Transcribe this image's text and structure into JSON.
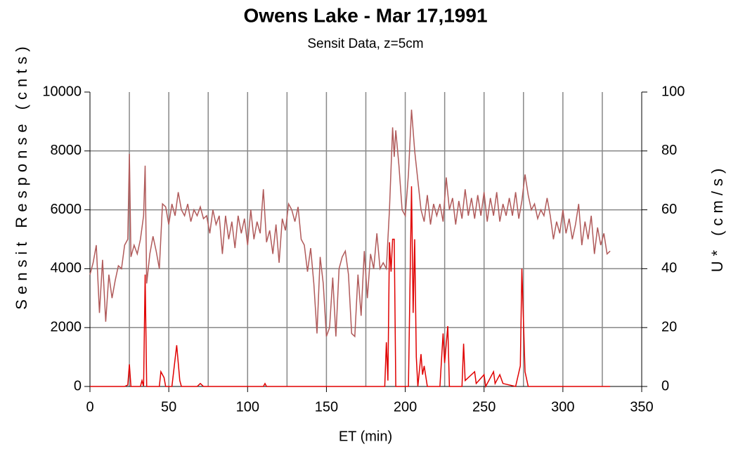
{
  "chart_data": {
    "type": "line",
    "title": "Owens Lake - Mar 17,1991",
    "subtitle": "Sensit Data, z=5cm",
    "x_label": "ET (min)",
    "y_label": "Sensit Response (cnts)",
    "y2_label": "U* (cm/s)",
    "xlim": [
      0,
      350
    ],
    "xticks": [
      0,
      50,
      100,
      150,
      200,
      250,
      300,
      350
    ],
    "x_minor_grid": [
      25,
      75,
      125,
      175,
      225,
      275,
      325
    ],
    "ylim": [
      0,
      10000
    ],
    "yticks": [
      0,
      2000,
      4000,
      6000,
      8000,
      10000
    ],
    "y2lim": [
      0,
      100
    ],
    "y2ticks": [
      0,
      20,
      40,
      60,
      80,
      100
    ],
    "grid": true,
    "series": [
      {
        "axis": "y2",
        "color": "#b05a5a",
        "x": [
          0,
          2,
          4,
          6,
          8,
          10,
          12,
          14,
          16,
          18,
          20,
          22,
          24,
          25,
          26,
          28,
          30,
          32,
          34,
          35,
          36,
          38,
          40,
          42,
          44,
          46,
          48,
          50,
          52,
          54,
          56,
          58,
          60,
          62,
          64,
          66,
          68,
          70,
          72,
          74,
          76,
          78,
          80,
          82,
          84,
          86,
          88,
          90,
          92,
          94,
          96,
          98,
          100,
          102,
          104,
          106,
          108,
          110,
          112,
          114,
          116,
          118,
          120,
          122,
          124,
          126,
          128,
          130,
          132,
          134,
          136,
          138,
          140,
          142,
          144,
          146,
          148,
          150,
          152,
          154,
          156,
          158,
          160,
          162,
          164,
          166,
          168,
          170,
          172,
          174,
          176,
          178,
          180,
          182,
          184,
          186,
          188,
          190,
          192,
          193,
          194,
          196,
          198,
          200,
          202,
          204,
          206,
          208,
          210,
          212,
          214,
          216,
          218,
          220,
          222,
          224,
          226,
          228,
          230,
          232,
          234,
          236,
          238,
          240,
          242,
          244,
          246,
          248,
          250,
          252,
          254,
          256,
          258,
          260,
          262,
          264,
          266,
          268,
          270,
          272,
          274,
          276,
          278,
          280,
          282,
          284,
          286,
          288,
          290,
          292,
          294,
          296,
          298,
          300,
          302,
          304,
          306,
          308,
          310,
          312,
          314,
          316,
          318,
          320,
          322,
          324,
          326,
          328,
          330
        ],
        "values": [
          38,
          42,
          48,
          25,
          43,
          22,
          38,
          30,
          36,
          41,
          40,
          48,
          50,
          79,
          44,
          48,
          45,
          50,
          58,
          75,
          35,
          45,
          51,
          46,
          40,
          62,
          61,
          55,
          62,
          58,
          66,
          60,
          58,
          62,
          56,
          60,
          58,
          61,
          57,
          58,
          52,
          60,
          55,
          58,
          45,
          58,
          50,
          56,
          47,
          58,
          52,
          57,
          48,
          60,
          50,
          56,
          52,
          67,
          49,
          53,
          45,
          55,
          42,
          57,
          53,
          62,
          60,
          56,
          61,
          50,
          48,
          39,
          47,
          35,
          18,
          44,
          35,
          17,
          20,
          37,
          17,
          40,
          44,
          46,
          38,
          18,
          17,
          38,
          24,
          46,
          30,
          45,
          40,
          52,
          40,
          42,
          40,
          60,
          88,
          78,
          87,
          75,
          60,
          58,
          72,
          94,
          80,
          70,
          60,
          56,
          65,
          55,
          62,
          58,
          62,
          56,
          71,
          60,
          64,
          55,
          63,
          57,
          67,
          58,
          64,
          57,
          65,
          58,
          66,
          56,
          64,
          58,
          66,
          56,
          62,
          58,
          64,
          58,
          66,
          57,
          63,
          72,
          65,
          60,
          62,
          57,
          60,
          58,
          64,
          58,
          50,
          56,
          52,
          60,
          52,
          57,
          50,
          55,
          62,
          48,
          56,
          50,
          58,
          45,
          54,
          48,
          52,
          45,
          46
        ]
      },
      {
        "axis": "y",
        "color": "#e00000",
        "x": [
          0,
          22,
          24,
          25,
          26,
          32,
          33,
          34,
          35,
          36,
          44,
          45,
          47,
          48,
          52,
          55,
          57,
          58,
          68,
          70,
          72,
          110,
          111,
          112,
          187,
          188,
          189,
          190,
          191,
          192,
          193,
          194,
          202,
          204,
          205,
          206,
          207,
          208,
          210,
          211,
          212,
          214,
          222,
          224,
          225,
          227,
          228,
          236,
          237,
          238,
          244,
          245,
          250,
          251,
          256,
          257,
          260,
          262,
          270,
          273,
          274,
          276,
          278,
          330
        ],
        "values": [
          0,
          0,
          50,
          750,
          0,
          0,
          200,
          0,
          3800,
          0,
          0,
          500,
          300,
          0,
          0,
          1400,
          200,
          0,
          0,
          100,
          0,
          0,
          100,
          0,
          0,
          1500,
          200,
          4900,
          3900,
          5000,
          5000,
          0,
          0,
          6800,
          2500,
          5000,
          1000,
          0,
          1100,
          400,
          700,
          0,
          0,
          1800,
          800,
          2050,
          0,
          0,
          1450,
          200,
          500,
          100,
          400,
          0,
          500,
          100,
          400,
          100,
          0,
          700,
          4000,
          500,
          0,
          0
        ]
      }
    ]
  }
}
